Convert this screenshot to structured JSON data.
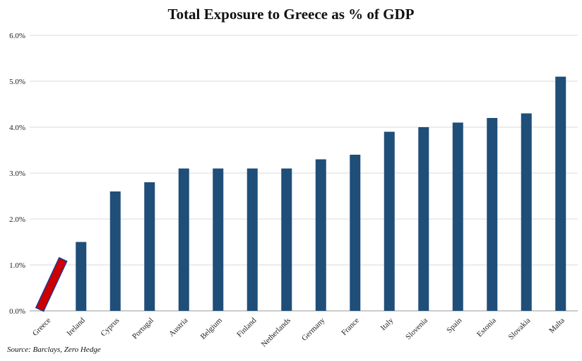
{
  "chart_data": {
    "type": "bar",
    "title": "Total Exposure to Greece as % of GDP",
    "source": "Source: Barclays, Zero Hedge",
    "categories": [
      "Greece",
      "Ireland",
      "Cyprus",
      "Portugal",
      "Austria",
      "Belgium",
      "Finland",
      "Netherlands",
      "Germany",
      "France",
      "Italy",
      "Slovenia",
      "Spain",
      "Estonia",
      "Slovakia",
      "Malta"
    ],
    "values": [
      null,
      1.5,
      2.6,
      2.8,
      3.1,
      3.1,
      3.1,
      3.1,
      3.3,
      3.4,
      3.9,
      4.0,
      4.1,
      4.2,
      4.3,
      5.1
    ],
    "highlight": {
      "category": "Greece",
      "shape": "tilted-bar",
      "color": "#cc0000",
      "stroke": "#1f3a93"
    },
    "bar_color": "#1f4e79",
    "ylim": [
      0,
      6
    ],
    "yticks": [
      "0.0%",
      "1.0%",
      "2.0%",
      "3.0%",
      "4.0%",
      "5.0%",
      "6.0%"
    ],
    "xlabel": "",
    "ylabel": "",
    "grid": true,
    "legend": "none"
  }
}
